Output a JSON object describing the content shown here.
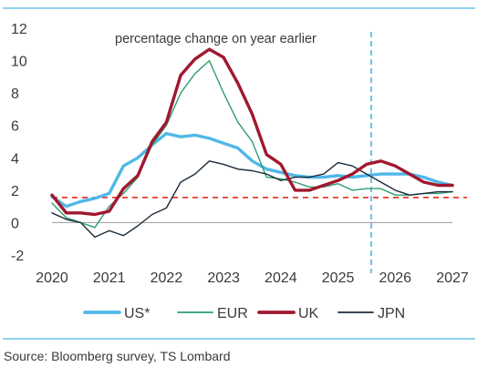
{
  "chart_data": {
    "type": "line",
    "title": "",
    "xlabel": "",
    "ylabel": "",
    "xlim": [
      2020,
      2027
    ],
    "ylim": [
      -2,
      12
    ],
    "x_ticks": [
      "2020",
      "2021",
      "2022",
      "2023",
      "2024",
      "2025",
      "2026",
      "2027"
    ],
    "y_ticks": [
      "-2",
      "0",
      "2",
      "4",
      "6",
      "8",
      "10",
      "12"
    ],
    "annotation": "percentage change on year earlier",
    "forecast_start_x": 2025.58,
    "reference_line": {
      "y": 1.55,
      "color": "#e8392b",
      "style": "dashed"
    },
    "grid": false,
    "legend_position": "bottom",
    "series": [
      {
        "name": "US*",
        "color": "#4fb8e8",
        "x": [
          2020,
          2020.25,
          2020.5,
          2020.75,
          2021,
          2021.25,
          2021.5,
          2021.75,
          2022,
          2022.25,
          2022.5,
          2022.75,
          2023,
          2023.25,
          2023.5,
          2023.75,
          2024,
          2024.25,
          2024.5,
          2024.75,
          2025,
          2025.25,
          2025.5,
          2025.75,
          2026,
          2026.25,
          2026.5,
          2026.75,
          2027
        ],
        "values": [
          1.6,
          1.0,
          1.3,
          1.5,
          1.8,
          3.5,
          4.0,
          4.8,
          5.5,
          5.3,
          5.4,
          5.2,
          4.9,
          4.6,
          3.8,
          3.3,
          3.1,
          2.9,
          2.8,
          2.8,
          2.9,
          2.8,
          2.9,
          3.0,
          3.0,
          3.0,
          2.8,
          2.5,
          2.3
        ]
      },
      {
        "name": "EUR",
        "color": "#2e9e6e",
        "x": [
          2020,
          2020.25,
          2020.5,
          2020.75,
          2021,
          2021.25,
          2021.5,
          2021.75,
          2022,
          2022.25,
          2022.5,
          2022.75,
          2023,
          2023.25,
          2023.5,
          2023.75,
          2024,
          2024.25,
          2024.5,
          2024.75,
          2025,
          2025.25,
          2025.5,
          2025.75,
          2026,
          2026.25,
          2026.5,
          2026.75,
          2027
        ],
        "values": [
          1.2,
          0.3,
          0.0,
          -0.3,
          1.0,
          1.8,
          2.8,
          4.8,
          6.0,
          8.0,
          9.2,
          10.0,
          8.0,
          6.2,
          5.0,
          2.8,
          2.7,
          2.5,
          2.2,
          2.2,
          2.4,
          2.0,
          2.1,
          2.1,
          1.7,
          1.7,
          1.8,
          1.8,
          1.9
        ]
      },
      {
        "name": "UK",
        "color": "#a0182e",
        "x": [
          2020,
          2020.25,
          2020.5,
          2020.75,
          2021,
          2021.25,
          2021.5,
          2021.75,
          2022,
          2022.25,
          2022.5,
          2022.75,
          2023,
          2023.25,
          2023.5,
          2023.75,
          2024,
          2024.25,
          2024.5,
          2024.75,
          2025,
          2025.25,
          2025.5,
          2025.75,
          2026,
          2026.25,
          2026.5,
          2026.75,
          2027
        ],
        "values": [
          1.7,
          0.6,
          0.6,
          0.5,
          0.7,
          2.1,
          2.9,
          5.0,
          6.2,
          9.1,
          10.1,
          10.7,
          10.2,
          8.6,
          6.7,
          4.2,
          3.6,
          2.0,
          2.0,
          2.3,
          2.6,
          3.0,
          3.6,
          3.8,
          3.5,
          3.0,
          2.5,
          2.3,
          2.3
        ]
      },
      {
        "name": "JPN",
        "color": "#1c2b3a",
        "x": [
          2020,
          2020.25,
          2020.5,
          2020.75,
          2021,
          2021.25,
          2021.5,
          2021.75,
          2022,
          2022.25,
          2022.5,
          2022.75,
          2023,
          2023.25,
          2023.5,
          2023.75,
          2024,
          2024.25,
          2024.5,
          2024.75,
          2025,
          2025.25,
          2025.5,
          2025.75,
          2026,
          2026.25,
          2026.5,
          2026.75,
          2027
        ],
        "values": [
          0.6,
          0.2,
          0.0,
          -0.9,
          -0.5,
          -0.8,
          -0.2,
          0.5,
          0.9,
          2.5,
          3.0,
          3.8,
          3.6,
          3.3,
          3.2,
          3.0,
          2.6,
          2.8,
          2.8,
          3.0,
          3.7,
          3.5,
          3.0,
          2.5,
          2.0,
          1.7,
          1.8,
          1.9,
          1.9
        ]
      }
    ]
  },
  "source": "Source: Bloomberg survey, TS Lombard"
}
